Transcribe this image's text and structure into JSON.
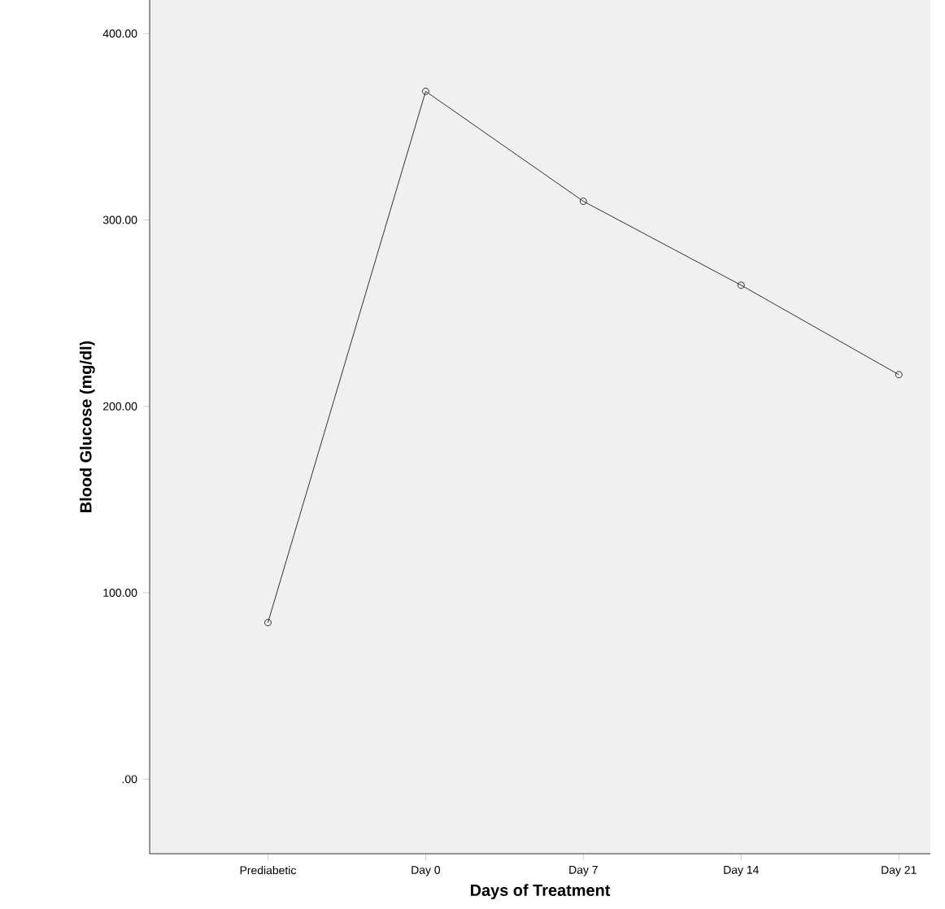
{
  "chart_data": {
    "type": "line",
    "xlabel": "Days of Treatment",
    "ylabel": "Blood Glucose (mg/dl)",
    "categories": [
      "Prediabetic",
      "Day 0",
      "Day 7",
      "Day 14",
      "Day 21"
    ],
    "values": [
      84,
      369,
      310,
      265,
      217
    ],
    "color": "#000000",
    "marker": "circle",
    "line_style": "solid",
    "grid": false,
    "ylim": [
      -40,
      418
    ],
    "yticks": [
      {
        "value": 0,
        "label": ".00"
      },
      {
        "value": 100,
        "label": "100.00"
      },
      {
        "value": 200,
        "label": "200.00"
      },
      {
        "value": 300,
        "label": "300.00"
      },
      {
        "value": 400,
        "label": "400.00"
      }
    ]
  }
}
